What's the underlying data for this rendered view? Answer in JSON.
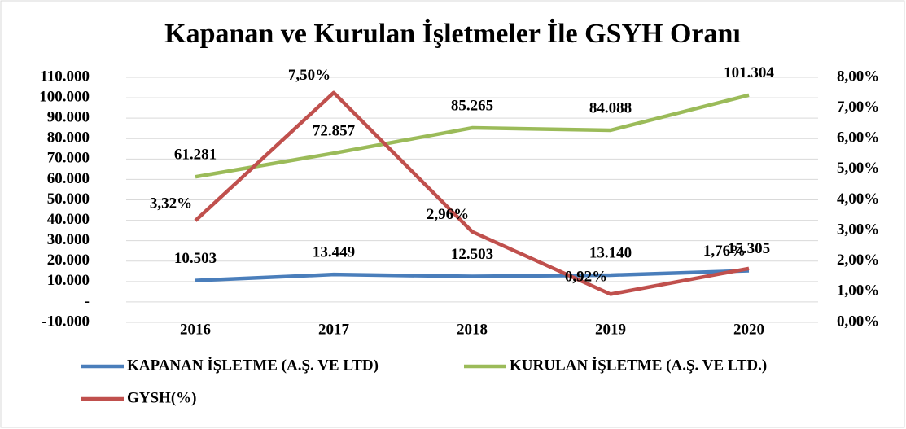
{
  "chart_data": {
    "type": "line",
    "title": "Kapanan ve Kurulan İşletmeler İle GSYH Oranı",
    "categories": [
      "2016",
      "2017",
      "2018",
      "2019",
      "2020"
    ],
    "series": [
      {
        "name": "KAPANAN İŞLETME (A.Ş. VE LTD)",
        "color": "#4a7ebb",
        "values": [
          10503,
          13449,
          12503,
          13140,
          15305
        ],
        "value_labels": [
          "10.503",
          "13.449",
          "12.503",
          "13.140",
          "15.305"
        ]
      },
      {
        "name": "KURULAN İŞLETME (A.Ş. VE LTD.)",
        "color": "#9bbb59",
        "values": [
          61281,
          72857,
          85265,
          84088,
          101304
        ],
        "value_labels": [
          "61.281",
          "72.857",
          "85.265",
          "84.088",
          "101.304"
        ]
      },
      {
        "name": "GYSH(%)",
        "color": "#c0504d",
        "axis": "y2",
        "values": [
          3.32,
          7.5,
          2.96,
          0.92,
          1.76
        ],
        "value_labels": [
          "3,32%",
          "7,50%",
          "2,96%",
          "0,92%",
          "1,76%"
        ]
      }
    ],
    "ylim": [
      -10000,
      110000
    ],
    "yticks": [
      {
        "value": -10000,
        "label": "-10.000"
      },
      {
        "value": 0,
        "label": "-"
      },
      {
        "value": 10000,
        "label": "10.000"
      },
      {
        "value": 20000,
        "label": "20.000"
      },
      {
        "value": 30000,
        "label": "30.000"
      },
      {
        "value": 40000,
        "label": "40.000"
      },
      {
        "value": 50000,
        "label": "50.000"
      },
      {
        "value": 60000,
        "label": "60.000"
      },
      {
        "value": 70000,
        "label": "70.000"
      },
      {
        "value": 80000,
        "label": "80.000"
      },
      {
        "value": 90000,
        "label": "90.000"
      },
      {
        "value": 100000,
        "label": "100.000"
      },
      {
        "value": 110000,
        "label": "110.000"
      }
    ],
    "y2lim": [
      0,
      8
    ],
    "y2ticks": [
      {
        "value": 0,
        "label": "0,00%"
      },
      {
        "value": 1,
        "label": "1,00%"
      },
      {
        "value": 2,
        "label": "2,00%"
      },
      {
        "value": 3,
        "label": "3,00%"
      },
      {
        "value": 4,
        "label": "4,00%"
      },
      {
        "value": 5,
        "label": "5,00%"
      },
      {
        "value": 6,
        "label": "6,00%"
      },
      {
        "value": 7,
        "label": "7,00%"
      },
      {
        "value": 8,
        "label": "8,00%"
      }
    ],
    "grid": true,
    "legend": "bottom"
  }
}
